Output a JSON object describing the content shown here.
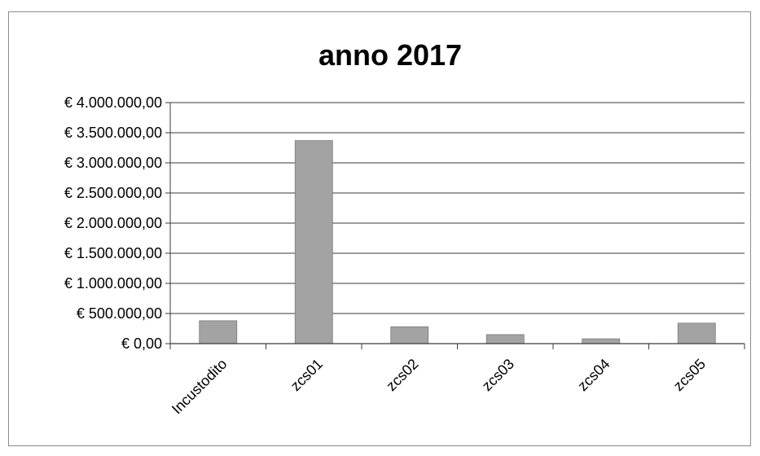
{
  "chart_data": {
    "type": "bar",
    "title": "anno 2017",
    "xlabel": "",
    "ylabel": "",
    "categories": [
      "Incustodito",
      "zcs01",
      "zcs02",
      "zcs03",
      "zcs04",
      "zcs05"
    ],
    "values": [
      380000,
      3370000,
      280000,
      150000,
      80000,
      340000
    ],
    "ylim": [
      0,
      4000000
    ],
    "yticks": [
      0,
      500000,
      1000000,
      1500000,
      2000000,
      2500000,
      3000000,
      3500000,
      4000000
    ],
    "ytick_labels": [
      "€ 0,00",
      "€ 500.000,00",
      "€ 1.000.000,00",
      "€ 1.500.000,00",
      "€ 2.000.000,00",
      "€ 2.500.000,00",
      "€ 3.000.000,00",
      "€ 3.500.000,00",
      "€ 4.000.000,00"
    ],
    "grid": true,
    "legend": "none",
    "colors": {
      "bar": "#a3a3a3",
      "bar_stroke": "#7a7a7a",
      "grid": "#3a3a3a",
      "axis": "#3a3a3a"
    }
  }
}
